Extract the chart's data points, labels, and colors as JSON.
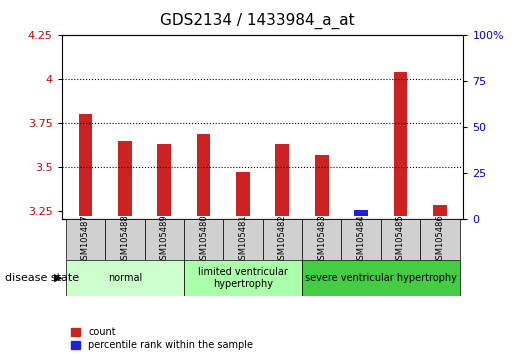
{
  "title": "GDS2134 / 1433984_a_at",
  "samples": [
    "GSM105487",
    "GSM105488",
    "GSM105489",
    "GSM105480",
    "GSM105481",
    "GSM105482",
    "GSM105483",
    "GSM105484",
    "GSM105485",
    "GSM105486"
  ],
  "count_values": [
    3.8,
    3.65,
    3.63,
    3.69,
    3.47,
    3.63,
    3.57,
    3.25,
    4.04,
    3.28
  ],
  "percentile_values": [
    2,
    2,
    2,
    2,
    2,
    2,
    2,
    5,
    2,
    2
  ],
  "ylim_left": [
    3.2,
    4.25
  ],
  "ylim_right": [
    0,
    100
  ],
  "yticks_left": [
    3.25,
    3.5,
    3.75,
    4.0,
    4.25
  ],
  "yticks_right": [
    0,
    25,
    50,
    75,
    100
  ],
  "ytick_labels_left": [
    "3.25",
    "3.5",
    "3.75",
    "4",
    "4.25"
  ],
  "ytick_labels_right": [
    "0",
    "25",
    "50",
    "75",
    "100%"
  ],
  "bar_color_red": "#cc2222",
  "bar_color_blue": "#2222cc",
  "bar_width": 0.35,
  "groups": [
    {
      "label": "normal",
      "samples": [
        "GSM105487",
        "GSM105488",
        "GSM105489"
      ],
      "color": "#ccffcc"
    },
    {
      "label": "limited ventricular\nhypertrophy",
      "samples": [
        "GSM105480",
        "GSM105481",
        "GSM105482"
      ],
      "color": "#aaffaa"
    },
    {
      "label": "severe ventricular hypertrophy",
      "samples": [
        "GSM105483",
        "GSM105484",
        "GSM105485",
        "GSM105486"
      ],
      "color": "#44cc44"
    }
  ],
  "baseline": 3.22,
  "grid_color": "#000000",
  "grid_linestyle": "dotted",
  "tick_label_color_left": "#cc0000",
  "tick_label_color_right": "#0000cc",
  "xlabel_area_color": "#dddddd",
  "disease_state_label": "disease state",
  "legend_items": [
    {
      "label": "count",
      "color": "#cc2222"
    },
    {
      "label": "percentile rank within the sample",
      "color": "#2222cc"
    }
  ]
}
